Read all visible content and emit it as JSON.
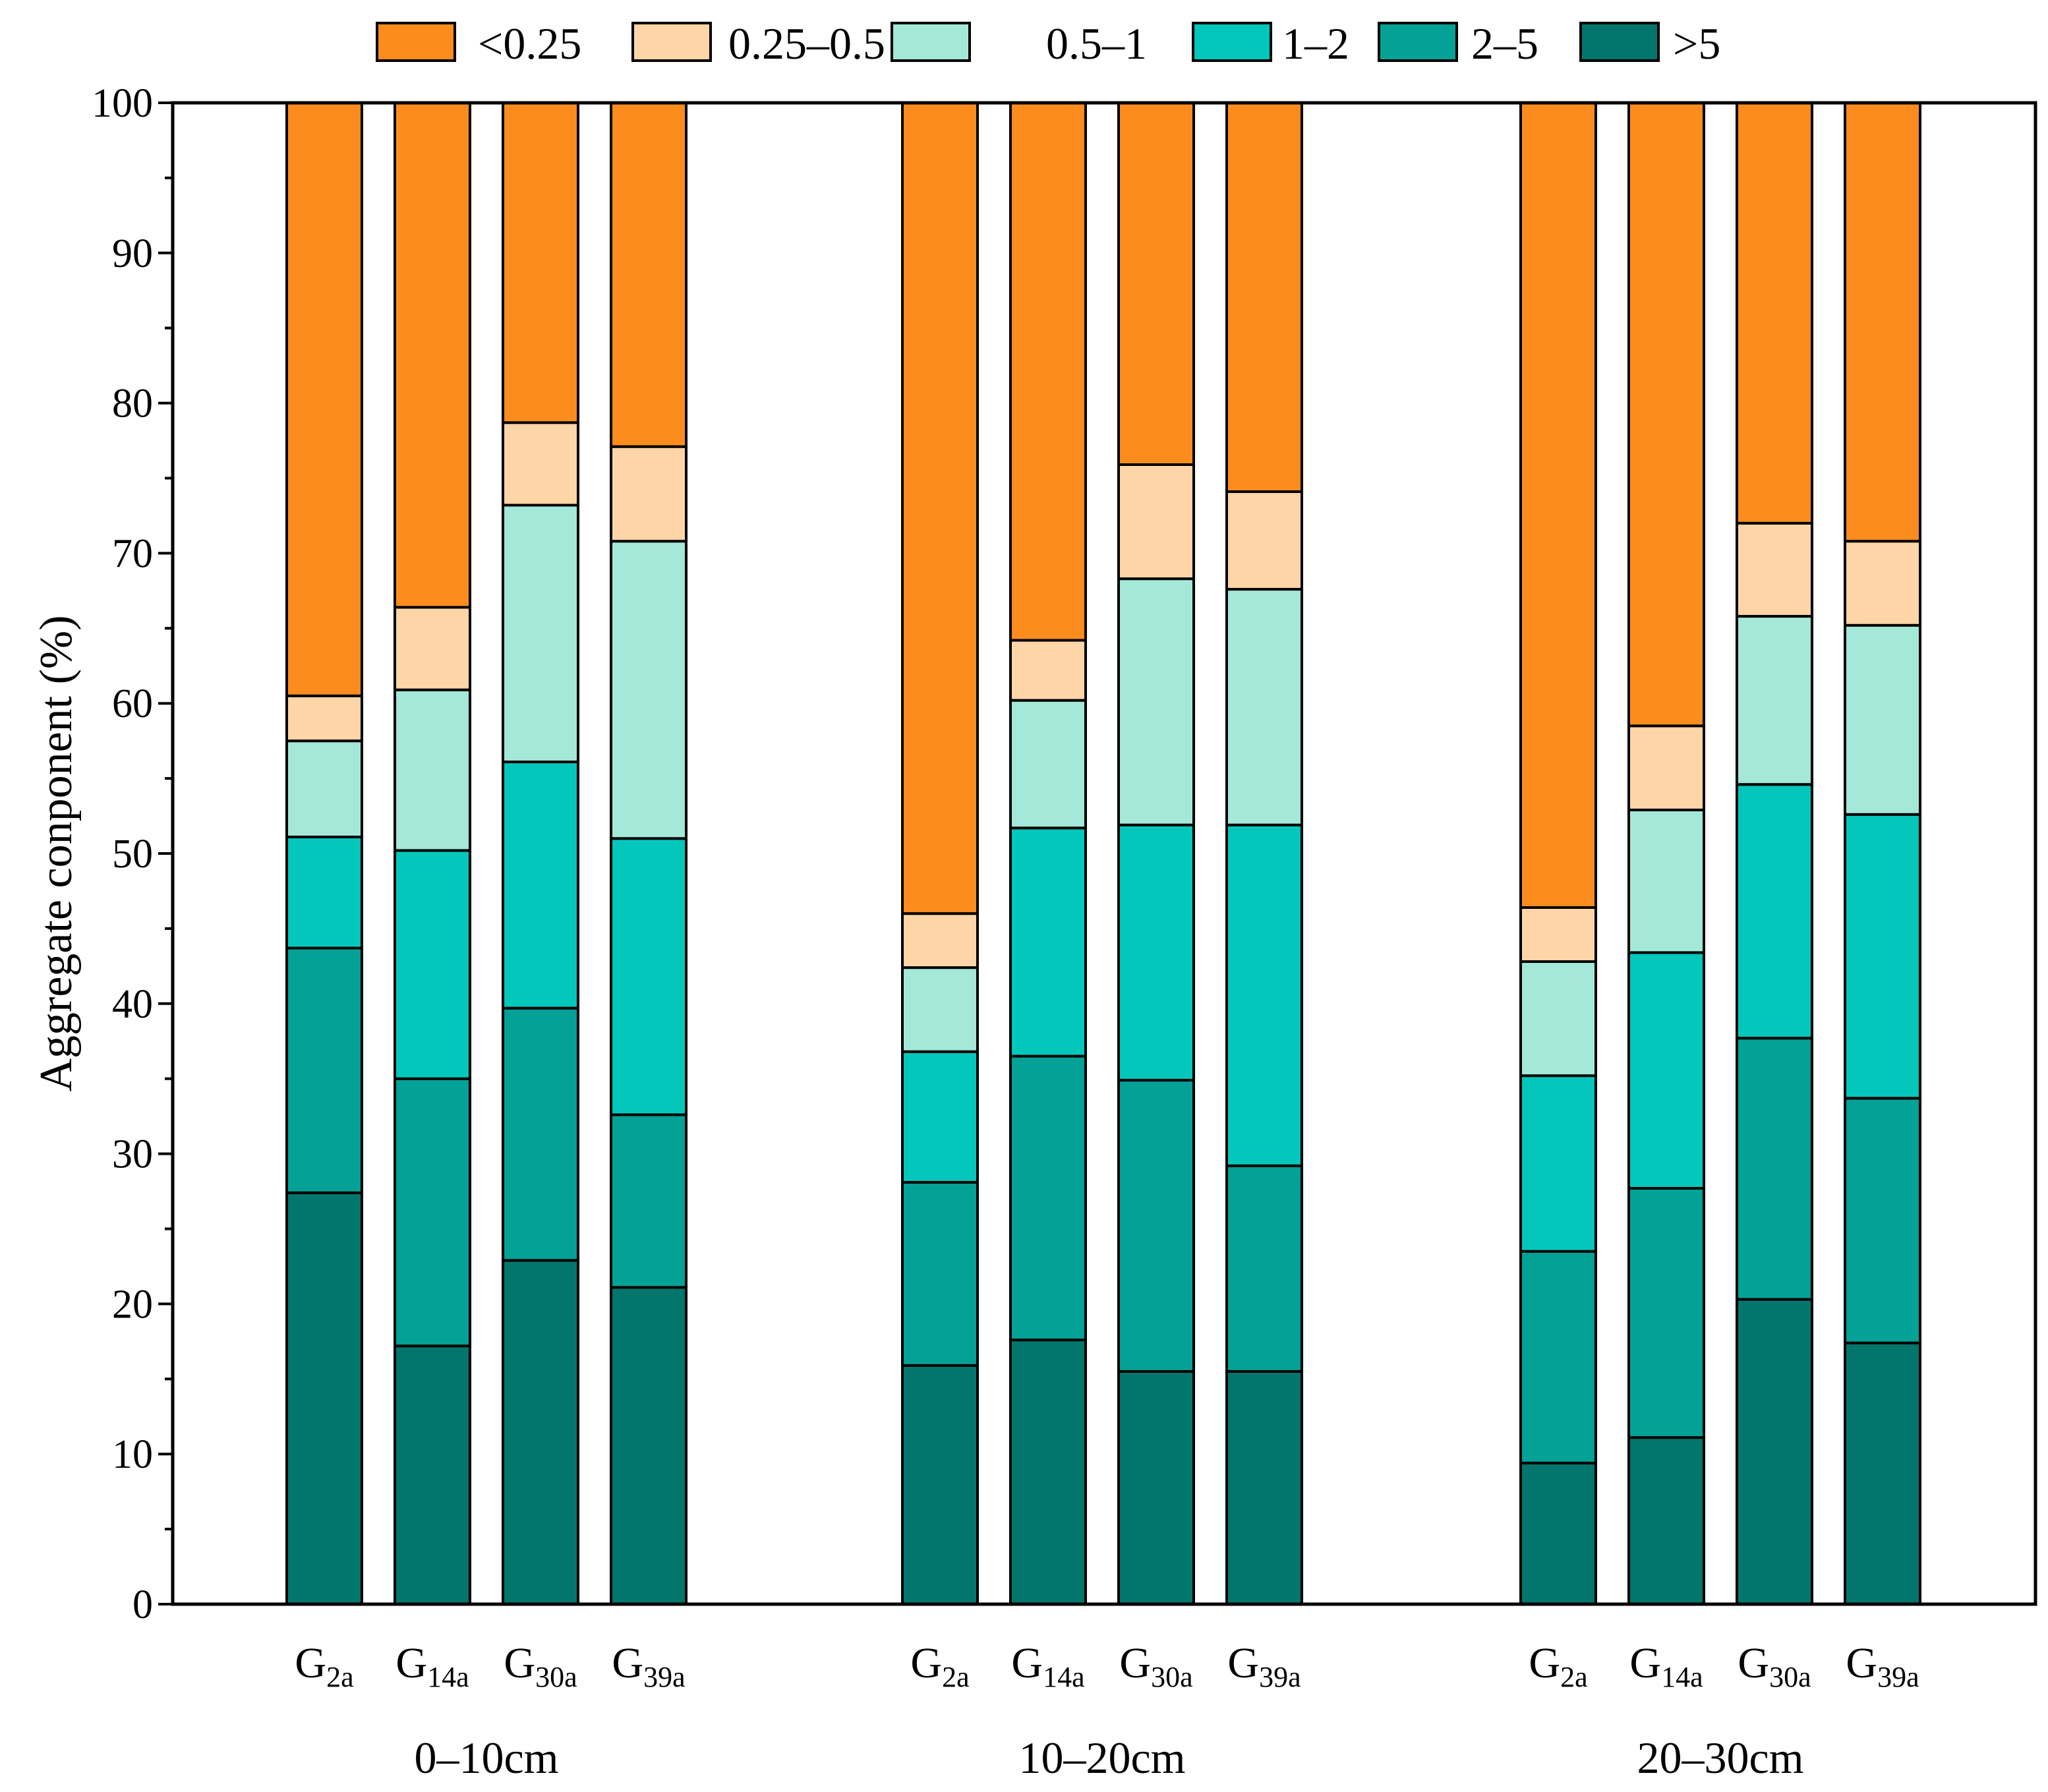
{
  "chart_data": {
    "type": "bar",
    "stacked": true,
    "title": "",
    "xlabel": "",
    "ylabel": "Aggregate conponent (%)",
    "ylim": [
      0,
      100
    ],
    "yticks": [
      0,
      10,
      20,
      30,
      40,
      50,
      60,
      70,
      80,
      90,
      100
    ],
    "legend_position": "top",
    "groups": [
      {
        "name": "0–10cm",
        "categories": [
          "G2a",
          "G14a",
          "G30a",
          "G39a"
        ]
      },
      {
        "name": "10–20cm",
        "categories": [
          "G2a",
          "G14a",
          "G30a",
          "G39a"
        ]
      },
      {
        "name": "20–30cm",
        "categories": [
          "G2a",
          "G14a",
          "G30a",
          "G39a"
        ]
      }
    ],
    "category_labels": [
      {
        "base": "G",
        "sub": "2a"
      },
      {
        "base": "G",
        "sub": "14a"
      },
      {
        "base": "G",
        "sub": "30a"
      },
      {
        "base": "G",
        "sub": "39a"
      }
    ],
    "series": [
      {
        "name": ">5",
        "color": "#02766c",
        "values": [
          27.4,
          17.2,
          22.9,
          21.1,
          15.9,
          17.6,
          15.5,
          15.5,
          9.4,
          11.1,
          20.3,
          17.4
        ]
      },
      {
        "name": "2–5",
        "color": "#03a196",
        "values": [
          16.3,
          17.8,
          16.8,
          11.5,
          12.2,
          18.9,
          19.4,
          13.7,
          14.1,
          16.6,
          17.4,
          16.3
        ]
      },
      {
        "name": "1–2",
        "color": "#03c7bb",
        "values": [
          7.4,
          15.2,
          16.4,
          18.4,
          8.7,
          15.2,
          17.0,
          22.7,
          11.7,
          15.7,
          16.9,
          18.9
        ]
      },
      {
        "name": "0.5–1",
        "color": "#a3e8d8",
        "values": [
          6.4,
          10.7,
          17.1,
          19.8,
          5.6,
          8.5,
          16.4,
          15.7,
          7.6,
          9.5,
          11.2,
          12.6
        ]
      },
      {
        "name": "0.25–0.5",
        "color": "#fed5a7",
        "values": [
          3.0,
          5.5,
          5.5,
          6.3,
          3.6,
          4.0,
          7.6,
          6.5,
          3.6,
          5.6,
          6.2,
          5.6
        ]
      },
      {
        "name": "<0.25",
        "color": "#fd8c1e",
        "values": [
          39.5,
          33.6,
          21.3,
          22.9,
          54.0,
          35.8,
          24.1,
          25.9,
          53.6,
          41.5,
          28.0,
          29.2
        ]
      }
    ],
    "legend": [
      {
        "label": "<0.25",
        "color": "#fd8c1e"
      },
      {
        "label": "0.25–0.5",
        "color": "#fed5a7"
      },
      {
        "label": "0.5–1",
        "color": "#a3e8d8"
      },
      {
        "label": "1–2",
        "color": "#03c7bb"
      },
      {
        "label": "2–5",
        "color": "#03a196"
      },
      {
        "label": ">5",
        "color": "#02766c"
      }
    ]
  }
}
